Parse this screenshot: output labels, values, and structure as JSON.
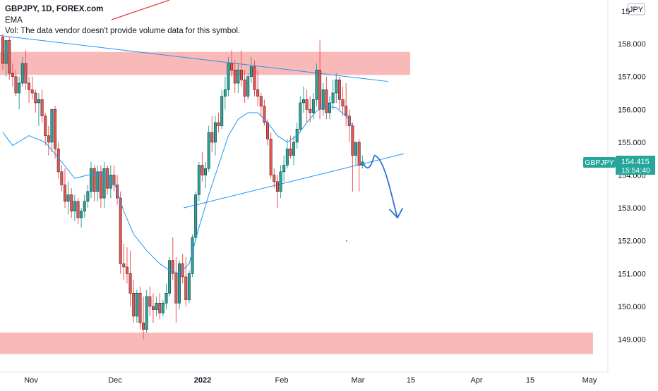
{
  "header": {
    "symbol_line": "GBPJPY, 1D, FOREX.com",
    "indicator": "EMA",
    "volume_note": "Vol: The data vendor doesn't provide volume data for this symbol."
  },
  "currency_badge": "JPY",
  "price_tag": {
    "symbol": "GBPJPY",
    "price": "154.415",
    "countdown": "15:54:40"
  },
  "colors": {
    "bull": "#26a69a",
    "bear": "#ef5350",
    "ema": "#2196f3",
    "zone": "#f7a1a1",
    "trendline": "#2196f3",
    "tag": "#26a69a"
  },
  "chart_data": {
    "type": "candlestick",
    "symbol": "GBPJPY",
    "timeframe": "1D",
    "ylim": [
      148.2,
      159.1
    ],
    "y_ticks": [
      "149.000",
      "150.000",
      "151.000",
      "152.000",
      "153.000",
      "154.000",
      "155.000",
      "156.000",
      "157.000",
      "158.000"
    ],
    "x_ticks": [
      "Nov",
      "Dec",
      "2022",
      "Feb",
      "Mar",
      "15",
      "Apr",
      "15",
      "May"
    ],
    "last_price": 154.415,
    "candles": [
      [
        158.2,
        158.3,
        157.2,
        157.4
      ],
      [
        157.4,
        158.1,
        157.0,
        158.1
      ],
      [
        158.1,
        158.2,
        156.9,
        157.1
      ],
      [
        157.1,
        157.4,
        156.7,
        157.0
      ],
      [
        157.0,
        157.2,
        156.4,
        156.5
      ],
      [
        156.5,
        157.0,
        156.0,
        156.8
      ],
      [
        156.8,
        157.6,
        156.7,
        157.4
      ],
      [
        157.4,
        157.8,
        156.6,
        156.8
      ],
      [
        156.8,
        157.0,
        156.2,
        156.6
      ],
      [
        156.6,
        157.0,
        156.3,
        156.5
      ],
      [
        156.5,
        156.6,
        155.9,
        156.2
      ],
      [
        156.2,
        156.5,
        155.5,
        156.3
      ],
      [
        156.3,
        156.6,
        155.6,
        155.8
      ],
      [
        155.8,
        155.9,
        154.9,
        155.2
      ],
      [
        155.2,
        155.5,
        154.6,
        155.0
      ],
      [
        155.0,
        156.0,
        154.7,
        156.0
      ],
      [
        156.0,
        156.1,
        154.5,
        154.8
      ],
      [
        154.8,
        155.0,
        153.9,
        154.1
      ],
      [
        154.1,
        154.3,
        153.5,
        153.7
      ],
      [
        153.7,
        154.2,
        153.0,
        153.2
      ],
      [
        153.2,
        153.8,
        152.8,
        153.4
      ],
      [
        153.4,
        153.6,
        152.7,
        152.9
      ],
      [
        152.9,
        153.4,
        152.6,
        153.2
      ],
      [
        153.2,
        153.3,
        152.5,
        152.7
      ],
      [
        152.7,
        153.0,
        152.4,
        152.9
      ],
      [
        152.9,
        153.4,
        152.7,
        153.2
      ],
      [
        153.2,
        153.7,
        153.0,
        153.5
      ],
      [
        153.5,
        154.4,
        153.3,
        154.2
      ],
      [
        154.2,
        154.3,
        153.2,
        153.5
      ],
      [
        153.5,
        154.3,
        153.2,
        154.1
      ],
      [
        154.1,
        154.3,
        153.0,
        153.3
      ],
      [
        153.3,
        154.4,
        153.0,
        154.2
      ],
      [
        154.2,
        154.3,
        153.4,
        153.6
      ],
      [
        153.6,
        154.3,
        153.3,
        154.0
      ],
      [
        154.0,
        154.3,
        153.5,
        153.7
      ],
      [
        153.7,
        154.0,
        153.1,
        153.3
      ],
      [
        153.3,
        153.5,
        151.0,
        151.3
      ],
      [
        151.3,
        151.9,
        150.8,
        151.2
      ],
      [
        151.2,
        151.8,
        150.7,
        151.0
      ],
      [
        151.0,
        151.7,
        150.0,
        150.4
      ],
      [
        150.4,
        150.8,
        149.5,
        149.7
      ],
      [
        149.7,
        150.5,
        149.5,
        150.4
      ],
      [
        150.4,
        150.6,
        149.3,
        149.5
      ],
      [
        149.5,
        150.3,
        149.0,
        149.3
      ],
      [
        149.3,
        150.5,
        149.2,
        150.3
      ],
      [
        150.3,
        150.6,
        149.7,
        150.0
      ],
      [
        150.0,
        150.4,
        149.5,
        149.9
      ],
      [
        149.9,
        150.3,
        149.7,
        150.1
      ],
      [
        150.1,
        150.4,
        149.6,
        149.8
      ],
      [
        149.8,
        150.2,
        149.7,
        150.1
      ],
      [
        150.1,
        150.7,
        149.9,
        150.4
      ],
      [
        150.4,
        151.5,
        150.3,
        151.4
      ],
      [
        151.4,
        152.1,
        150.8,
        151.0
      ],
      [
        151.0,
        151.5,
        149.5,
        150.1
      ],
      [
        150.1,
        151.4,
        149.9,
        151.3
      ],
      [
        151.3,
        151.6,
        150.7,
        150.9
      ],
      [
        150.9,
        151.5,
        150.0,
        150.2
      ],
      [
        150.2,
        151.1,
        150.1,
        151.0
      ],
      [
        151.0,
        152.2,
        150.9,
        152.1
      ],
      [
        152.1,
        153.5,
        152.0,
        153.4
      ],
      [
        153.4,
        154.4,
        153.2,
        154.3
      ],
      [
        154.3,
        154.7,
        153.8,
        154.0
      ],
      [
        154.0,
        154.4,
        153.6,
        154.2
      ],
      [
        154.2,
        155.5,
        154.1,
        155.3
      ],
      [
        155.3,
        155.8,
        154.7,
        155.0
      ],
      [
        155.0,
        155.8,
        154.6,
        155.6
      ],
      [
        155.6,
        155.9,
        155.3,
        155.5
      ],
      [
        155.5,
        156.6,
        155.4,
        156.4
      ],
      [
        156.4,
        157.0,
        156.0,
        156.6
      ],
      [
        156.6,
        157.6,
        156.4,
        157.4
      ],
      [
        157.4,
        157.8,
        157.0,
        157.2
      ],
      [
        157.2,
        157.5,
        156.5,
        156.8
      ],
      [
        156.8,
        157.4,
        156.5,
        157.2
      ],
      [
        157.2,
        157.8,
        156.7,
        156.9
      ],
      [
        156.9,
        157.2,
        156.2,
        156.4
      ],
      [
        156.4,
        157.1,
        156.3,
        157.0
      ],
      [
        157.0,
        157.6,
        156.8,
        157.3
      ],
      [
        157.3,
        157.5,
        156.4,
        156.6
      ],
      [
        156.6,
        157.2,
        156.1,
        156.4
      ],
      [
        156.4,
        156.5,
        155.8,
        156.1
      ],
      [
        156.1,
        156.3,
        155.5,
        155.6
      ],
      [
        155.6,
        155.7,
        154.9,
        155.1
      ],
      [
        155.1,
        155.3,
        153.9,
        154.0
      ],
      [
        154.0,
        154.2,
        153.6,
        153.8
      ],
      [
        153.8,
        154.0,
        153.0,
        153.5
      ],
      [
        153.5,
        154.3,
        153.3,
        154.1
      ],
      [
        154.1,
        154.6,
        153.8,
        154.3
      ],
      [
        154.3,
        155.1,
        154.2,
        154.8
      ],
      [
        154.8,
        155.2,
        154.5,
        154.6
      ],
      [
        154.6,
        155.2,
        154.3,
        155.0
      ],
      [
        155.0,
        155.6,
        154.8,
        155.4
      ],
      [
        155.4,
        156.4,
        155.3,
        156.2
      ],
      [
        156.2,
        156.7,
        155.9,
        156.3
      ],
      [
        156.3,
        156.6,
        155.6,
        156.0
      ],
      [
        156.0,
        156.4,
        155.6,
        155.9
      ],
      [
        155.9,
        156.5,
        155.7,
        156.3
      ],
      [
        156.3,
        157.4,
        156.1,
        157.2
      ],
      [
        157.2,
        158.1,
        155.7,
        156.0
      ],
      [
        156.0,
        156.8,
        155.8,
        156.6
      ],
      [
        156.6,
        157.0,
        155.7,
        155.9
      ],
      [
        155.9,
        156.4,
        155.7,
        156.2
      ],
      [
        156.2,
        156.9,
        156.0,
        156.5
      ],
      [
        156.5,
        157.1,
        156.2,
        156.9
      ],
      [
        156.9,
        157.0,
        156.0,
        156.3
      ],
      [
        156.3,
        156.7,
        155.8,
        156.1
      ],
      [
        156.1,
        156.8,
        155.5,
        155.8
      ],
      [
        155.8,
        156.0,
        155.0,
        155.5
      ],
      [
        155.5,
        155.6,
        153.5,
        154.6
      ],
      [
        154.6,
        155.0,
        154.3,
        155.0
      ],
      [
        155.0,
        155.1,
        153.5,
        154.3
      ],
      [
        154.3,
        154.6,
        154.2,
        154.4
      ]
    ],
    "ema": [
      [
        0,
        155.3
      ],
      [
        3,
        154.9
      ],
      [
        8,
        155.2
      ],
      [
        13,
        155.0
      ],
      [
        18,
        154.4
      ],
      [
        22,
        153.9
      ],
      [
        26,
        154.0
      ],
      [
        31,
        154.05
      ],
      [
        34,
        153.8
      ],
      [
        37,
        152.9
      ],
      [
        40,
        152.2
      ],
      [
        44,
        151.7
      ],
      [
        48,
        151.3
      ],
      [
        51,
        151.1
      ],
      [
        54,
        151.0
      ],
      [
        57,
        151.3
      ],
      [
        60,
        152.4
      ],
      [
        63,
        153.4
      ],
      [
        66,
        154.3
      ],
      [
        69,
        155.2
      ],
      [
        72,
        155.7
      ],
      [
        75,
        155.9
      ],
      [
        78,
        155.9
      ],
      [
        81,
        155.6
      ],
      [
        84,
        155.2
      ],
      [
        87,
        155.0
      ],
      [
        90,
        155.2
      ],
      [
        93,
        155.6
      ],
      [
        96,
        155.95
      ],
      [
        99,
        156.1
      ],
      [
        102,
        156.05
      ],
      [
        105,
        155.8
      ],
      [
        107,
        155.5
      ]
    ]
  }
}
